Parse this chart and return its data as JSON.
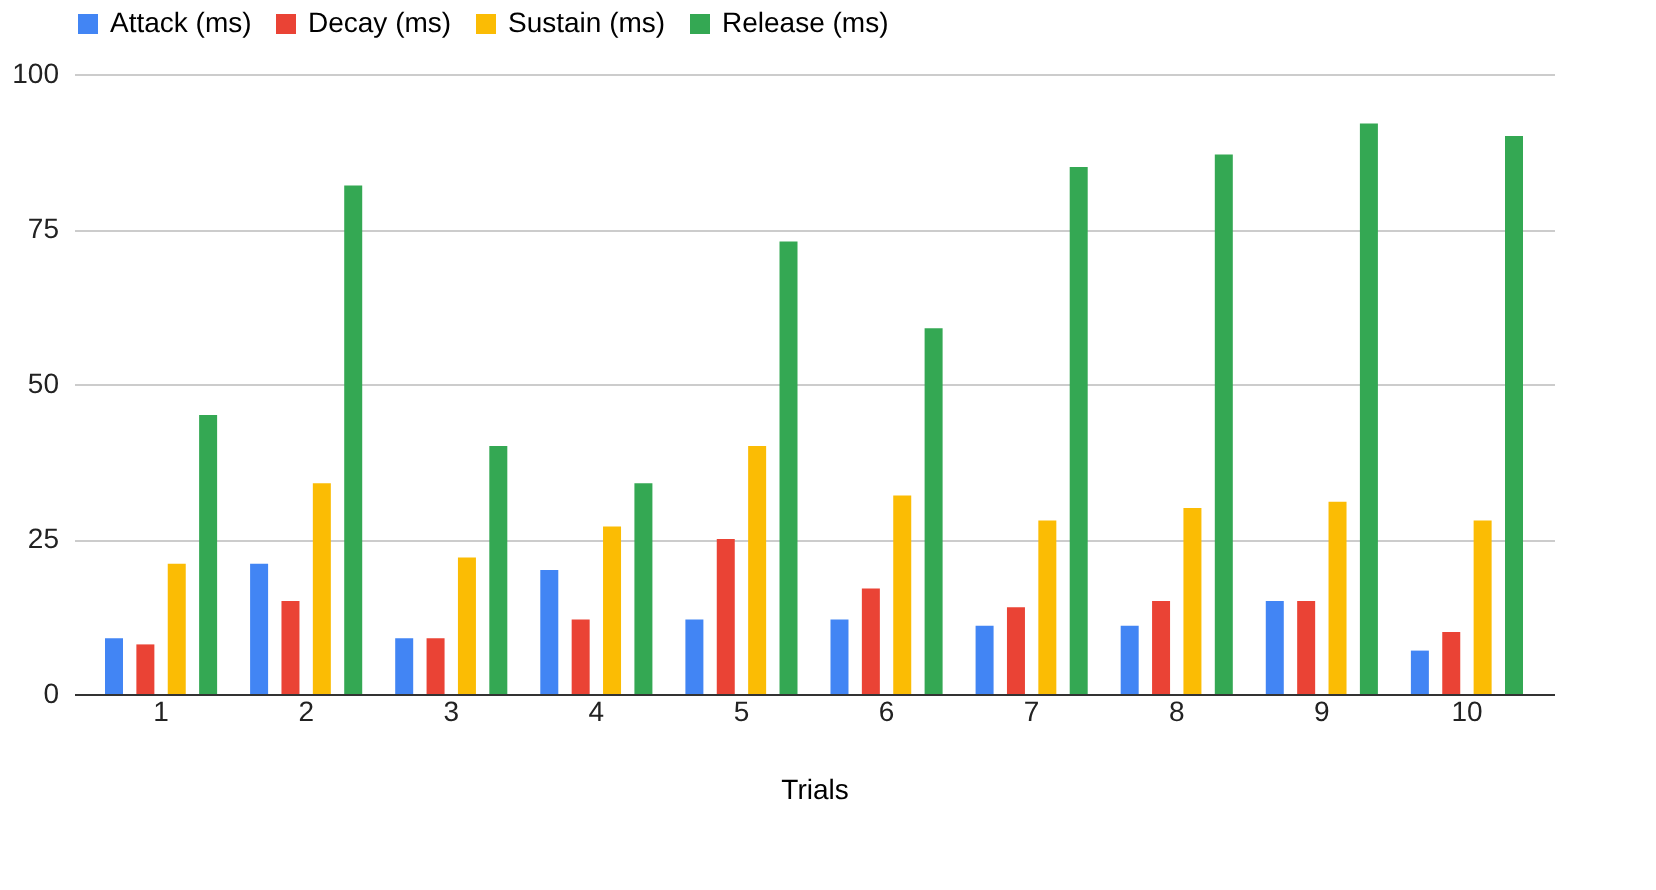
{
  "chart_data": {
    "type": "bar",
    "xlabel": "Trials",
    "categories": [
      "1",
      "2",
      "3",
      "4",
      "5",
      "6",
      "7",
      "8",
      "9",
      "10"
    ],
    "series": [
      {
        "name": "Attack (ms)",
        "color": "#4285f4",
        "values": [
          9,
          21,
          9,
          20,
          12,
          12,
          11,
          11,
          15,
          7
        ]
      },
      {
        "name": "Decay (ms)",
        "color": "#ea4335",
        "values": [
          8,
          15,
          9,
          12,
          25,
          17,
          14,
          15,
          15,
          10
        ]
      },
      {
        "name": "Sustain (ms)",
        "color": "#fbbc04",
        "values": [
          21,
          34,
          22,
          27,
          40,
          32,
          28,
          30,
          31,
          28
        ]
      },
      {
        "name": "Release (ms)",
        "color": "#34a853",
        "values": [
          45,
          82,
          40,
          34,
          73,
          59,
          85,
          87,
          92,
          90
        ]
      }
    ],
    "ylim": [
      0,
      100
    ],
    "yticks": [
      0,
      25,
      50,
      75,
      100
    ],
    "grid": "y",
    "legend": "top"
  }
}
